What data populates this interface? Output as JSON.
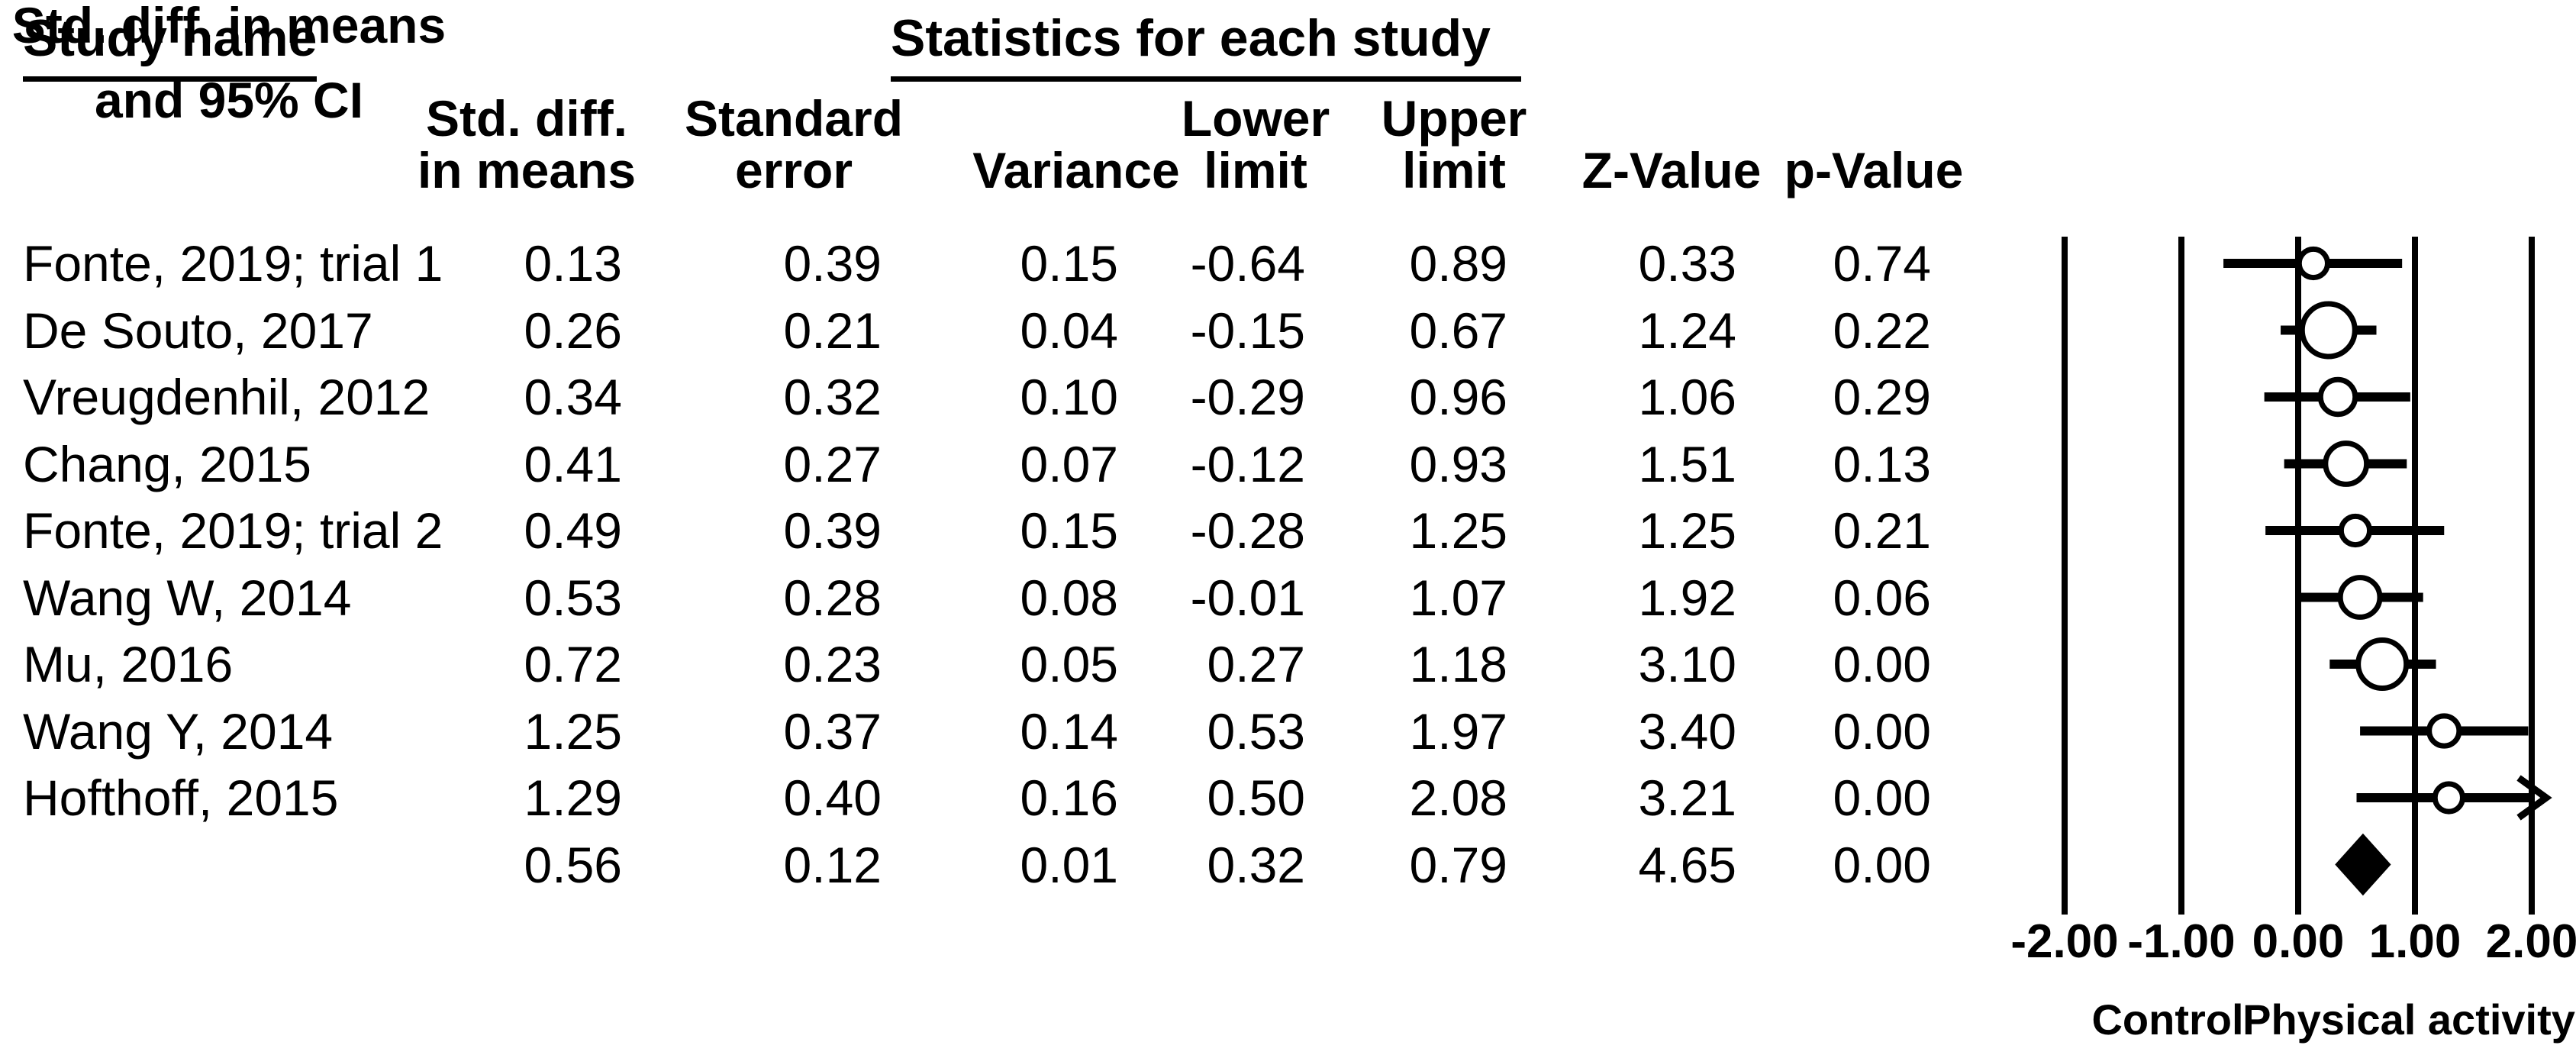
{
  "figure": {
    "background_color": "#ffffff",
    "foreground_color": "#000000"
  },
  "table": {
    "study_col_header": "Study name",
    "stats_group_header": "Statistics for each study",
    "forest_header_line1": "Std. diff. in means",
    "forest_header_line2": "and 95% CI",
    "columns": [
      {
        "line1": "Std. diff.",
        "line2": "in means",
        "key": "std_diff"
      },
      {
        "line1": "Standard",
        "line2": "error",
        "key": "std_err"
      },
      {
        "line1": "",
        "line2": "Variance",
        "key": "variance"
      },
      {
        "line1": "Lower",
        "line2": "limit",
        "key": "lower"
      },
      {
        "line1": "Upper",
        "line2": "limit",
        "key": "upper"
      },
      {
        "line1": "",
        "line2": "Z-Value",
        "key": "z"
      },
      {
        "line1": "",
        "line2": "p-Value",
        "key": "p"
      }
    ]
  },
  "chart_data": {
    "type": "forest",
    "effect_measure": "Std. diff. in means",
    "xlim": [
      -2.0,
      2.0
    ],
    "axis_values": [
      -2.0,
      -1.0,
      0.0,
      1.0,
      2.0
    ],
    "axis_tick_labels": [
      "-2.00",
      "-1.00",
      "0.00",
      "1.00",
      "2.00"
    ],
    "xlabel_left": "Control",
    "xlabel_right": "Physical activity",
    "grid": true,
    "studies": [
      {
        "study": "Fonte, 2019; trial 1",
        "std_diff": 0.13,
        "std_err": 0.39,
        "variance": 0.15,
        "lower": -0.64,
        "upper": 0.89,
        "z": 0.33,
        "p": 0.74
      },
      {
        "study": "De Souto, 2017",
        "std_diff": 0.26,
        "std_err": 0.21,
        "variance": 0.04,
        "lower": -0.15,
        "upper": 0.67,
        "z": 1.24,
        "p": 0.22
      },
      {
        "study": "Vreugdenhil, 2012",
        "std_diff": 0.34,
        "std_err": 0.32,
        "variance": 0.1,
        "lower": -0.29,
        "upper": 0.96,
        "z": 1.06,
        "p": 0.29
      },
      {
        "study": "Chang, 2015",
        "std_diff": 0.41,
        "std_err": 0.27,
        "variance": 0.07,
        "lower": -0.12,
        "upper": 0.93,
        "z": 1.51,
        "p": 0.13
      },
      {
        "study": "Fonte, 2019; trial 2",
        "std_diff": 0.49,
        "std_err": 0.39,
        "variance": 0.15,
        "lower": -0.28,
        "upper": 1.25,
        "z": 1.25,
        "p": 0.21
      },
      {
        "study": "Wang W, 2014",
        "std_diff": 0.53,
        "std_err": 0.28,
        "variance": 0.08,
        "lower": -0.01,
        "upper": 1.07,
        "z": 1.92,
        "p": 0.06
      },
      {
        "study": "Mu, 2016",
        "std_diff": 0.72,
        "std_err": 0.23,
        "variance": 0.05,
        "lower": 0.27,
        "upper": 1.18,
        "z": 3.1,
        "p": 0.0
      },
      {
        "study": "Wang Y, 2014",
        "std_diff": 1.25,
        "std_err": 0.37,
        "variance": 0.14,
        "lower": 0.53,
        "upper": 1.97,
        "z": 3.4,
        "p": 0.0
      },
      {
        "study": "Hofthoff, 2015",
        "std_diff": 1.29,
        "std_err": 0.4,
        "variance": 0.16,
        "lower": 0.5,
        "upper": 2.08,
        "z": 3.21,
        "p": 0.0
      }
    ],
    "overall": {
      "study": "",
      "std_diff": 0.56,
      "std_err": 0.12,
      "variance": 0.01,
      "lower": 0.32,
      "upper": 0.79,
      "z": 4.65,
      "p": 0.0
    }
  }
}
